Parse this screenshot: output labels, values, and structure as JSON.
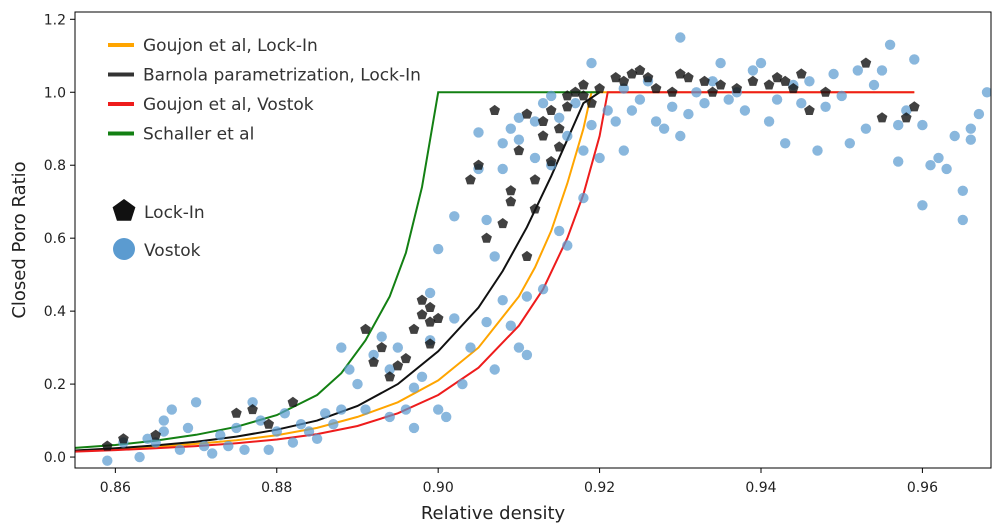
{
  "chart_data": {
    "type": "scatter",
    "title": "",
    "xlabel": "Relative density",
    "ylabel": "Closed Poro Ratio",
    "xlim": [
      0.855,
      0.9685
    ],
    "ylim": [
      -0.03,
      1.22
    ],
    "x_ticks": [
      {
        "value": 0.86,
        "label": "0.86"
      },
      {
        "value": 0.88,
        "label": "0.88"
      },
      {
        "value": 0.9,
        "label": "0.90"
      },
      {
        "value": 0.92,
        "label": "0.92"
      },
      {
        "value": 0.94,
        "label": "0.94"
      },
      {
        "value": 0.96,
        "label": "0.96"
      }
    ],
    "y_ticks": [
      {
        "value": 0.0,
        "label": "0.0"
      },
      {
        "value": 0.2,
        "label": "0.2"
      },
      {
        "value": 0.4,
        "label": "0.4"
      },
      {
        "value": 0.6,
        "label": "0.6"
      },
      {
        "value": 0.8,
        "label": "0.8"
      },
      {
        "value": 1.0,
        "label": "1.0"
      },
      {
        "value": 1.2,
        "label": "1.2"
      }
    ],
    "grid": false,
    "legend": {
      "position": "top-left",
      "lines": [
        {
          "label": "Goujon et al, Lock-In",
          "color": "#ffa500"
        },
        {
          "label": "Barnola parametrization, Lock-In",
          "color": "#333333"
        },
        {
          "label": "Goujon et al, Vostok",
          "color": "#ee1c1c"
        },
        {
          "label": "Schaller et al",
          "color": "#138013"
        }
      ],
      "markers": [
        {
          "label": "Lock-In",
          "shape": "pentagon",
          "color": "#111111"
        },
        {
          "label": "Vostok",
          "shape": "circle",
          "color": "#5b9bd0"
        }
      ]
    },
    "lines": [
      {
        "name": "Goujon et al, Lock-In",
        "color": "#ffa500",
        "x": [
          0.855,
          0.86,
          0.865,
          0.87,
          0.875,
          0.88,
          0.885,
          0.89,
          0.895,
          0.9,
          0.905,
          0.91,
          0.912,
          0.914,
          0.916,
          0.918,
          0.919,
          0.959
        ],
        "y": [
          0.017,
          0.022,
          0.028,
          0.036,
          0.046,
          0.06,
          0.08,
          0.11,
          0.15,
          0.21,
          0.3,
          0.44,
          0.52,
          0.62,
          0.75,
          0.9,
          1.0,
          1.0
        ]
      },
      {
        "name": "Barnola parametrization, Lock-In",
        "color": "#111111",
        "x": [
          0.855,
          0.86,
          0.865,
          0.87,
          0.875,
          0.88,
          0.885,
          0.89,
          0.895,
          0.9,
          0.905,
          0.908,
          0.911,
          0.914,
          0.916,
          0.918,
          0.92
        ],
        "y": [
          0.018,
          0.024,
          0.032,
          0.042,
          0.056,
          0.075,
          0.1,
          0.14,
          0.2,
          0.29,
          0.41,
          0.51,
          0.63,
          0.77,
          0.87,
          0.97,
          1.0
        ]
      },
      {
        "name": "Goujon et al, Vostok",
        "color": "#ee1c1c",
        "x": [
          0.855,
          0.86,
          0.865,
          0.87,
          0.875,
          0.88,
          0.885,
          0.89,
          0.895,
          0.9,
          0.905,
          0.91,
          0.913,
          0.916,
          0.918,
          0.92,
          0.921,
          0.959
        ],
        "y": [
          0.015,
          0.019,
          0.024,
          0.03,
          0.038,
          0.048,
          0.063,
          0.085,
          0.12,
          0.17,
          0.245,
          0.36,
          0.46,
          0.6,
          0.72,
          0.88,
          1.0,
          1.0
        ]
      },
      {
        "name": "Schaller et al",
        "color": "#138013",
        "x": [
          0.855,
          0.86,
          0.865,
          0.87,
          0.875,
          0.88,
          0.885,
          0.888,
          0.891,
          0.894,
          0.896,
          0.898,
          0.9,
          0.92
        ],
        "y": [
          0.025,
          0.033,
          0.045,
          0.061,
          0.083,
          0.115,
          0.17,
          0.23,
          0.32,
          0.44,
          0.56,
          0.74,
          1.0,
          1.0
        ]
      }
    ],
    "scatter": [
      {
        "name": "Lock-In",
        "marker": "pentagon",
        "color": "#111111",
        "points": [
          [
            0.859,
            0.03
          ],
          [
            0.861,
            0.05
          ],
          [
            0.865,
            0.06
          ],
          [
            0.875,
            0.12
          ],
          [
            0.877,
            0.13
          ],
          [
            0.879,
            0.09
          ],
          [
            0.882,
            0.15
          ],
          [
            0.891,
            0.35
          ],
          [
            0.892,
            0.26
          ],
          [
            0.893,
            0.3
          ],
          [
            0.894,
            0.22
          ],
          [
            0.895,
            0.25
          ],
          [
            0.896,
            0.27
          ],
          [
            0.897,
            0.35
          ],
          [
            0.898,
            0.43
          ],
          [
            0.899,
            0.41
          ],
          [
            0.898,
            0.39
          ],
          [
            0.899,
            0.37
          ],
          [
            0.9,
            0.38
          ],
          [
            0.899,
            0.31
          ],
          [
            0.904,
            0.76
          ],
          [
            0.905,
            0.8
          ],
          [
            0.906,
            0.6
          ],
          [
            0.907,
            0.95
          ],
          [
            0.908,
            0.64
          ],
          [
            0.909,
            0.73
          ],
          [
            0.909,
            0.7
          ],
          [
            0.91,
            0.84
          ],
          [
            0.911,
            0.55
          ],
          [
            0.911,
            0.94
          ],
          [
            0.912,
            0.68
          ],
          [
            0.912,
            0.76
          ],
          [
            0.913,
            0.88
          ],
          [
            0.913,
            0.92
          ],
          [
            0.914,
            0.81
          ],
          [
            0.914,
            0.95
          ],
          [
            0.915,
            0.9
          ],
          [
            0.915,
            0.85
          ],
          [
            0.916,
            0.96
          ],
          [
            0.916,
            0.99
          ],
          [
            0.917,
            1.0
          ],
          [
            0.918,
            0.99
          ],
          [
            0.918,
            1.02
          ],
          [
            0.919,
            0.97
          ],
          [
            0.92,
            1.01
          ],
          [
            0.922,
            1.04
          ],
          [
            0.923,
            1.03
          ],
          [
            0.924,
            1.05
          ],
          [
            0.925,
            1.06
          ],
          [
            0.926,
            1.04
          ],
          [
            0.927,
            1.01
          ],
          [
            0.929,
            1.0
          ],
          [
            0.93,
            1.05
          ],
          [
            0.931,
            1.04
          ],
          [
            0.933,
            1.03
          ],
          [
            0.934,
            1.0
          ],
          [
            0.935,
            1.02
          ],
          [
            0.937,
            1.01
          ],
          [
            0.939,
            1.03
          ],
          [
            0.941,
            1.02
          ],
          [
            0.942,
            1.04
          ],
          [
            0.943,
            1.03
          ],
          [
            0.944,
            1.01
          ],
          [
            0.945,
            1.05
          ],
          [
            0.946,
            0.95
          ],
          [
            0.948,
            1.0
          ],
          [
            0.953,
            1.08
          ],
          [
            0.955,
            0.93
          ],
          [
            0.958,
            0.93
          ],
          [
            0.959,
            0.96
          ]
        ]
      },
      {
        "name": "Vostok",
        "marker": "circle",
        "color": "#5b9bd0",
        "points": [
          [
            0.859,
            -0.01
          ],
          [
            0.861,
            0.04
          ],
          [
            0.863,
            0.0
          ],
          [
            0.864,
            0.05
          ],
          [
            0.865,
            0.04
          ],
          [
            0.866,
            0.07
          ],
          [
            0.866,
            0.1
          ],
          [
            0.867,
            0.13
          ],
          [
            0.868,
            0.02
          ],
          [
            0.869,
            0.08
          ],
          [
            0.87,
            0.15
          ],
          [
            0.871,
            0.03
          ],
          [
            0.872,
            0.01
          ],
          [
            0.873,
            0.06
          ],
          [
            0.874,
            0.03
          ],
          [
            0.875,
            0.08
          ],
          [
            0.876,
            0.02
          ],
          [
            0.877,
            0.15
          ],
          [
            0.878,
            0.1
          ],
          [
            0.879,
            0.02
          ],
          [
            0.88,
            0.07
          ],
          [
            0.881,
            0.12
          ],
          [
            0.882,
            0.04
          ],
          [
            0.883,
            0.09
          ],
          [
            0.884,
            0.07
          ],
          [
            0.885,
            0.05
          ],
          [
            0.886,
            0.12
          ],
          [
            0.887,
            0.09
          ],
          [
            0.888,
            0.13
          ],
          [
            0.888,
            0.3
          ],
          [
            0.889,
            0.24
          ],
          [
            0.89,
            0.2
          ],
          [
            0.891,
            0.13
          ],
          [
            0.892,
            0.28
          ],
          [
            0.893,
            0.33
          ],
          [
            0.894,
            0.24
          ],
          [
            0.894,
            0.11
          ],
          [
            0.895,
            0.3
          ],
          [
            0.896,
            0.13
          ],
          [
            0.897,
            0.08
          ],
          [
            0.897,
            0.19
          ],
          [
            0.898,
            0.22
          ],
          [
            0.899,
            0.32
          ],
          [
            0.899,
            0.45
          ],
          [
            0.9,
            0.13
          ],
          [
            0.9,
            0.57
          ],
          [
            0.901,
            0.11
          ],
          [
            0.902,
            0.66
          ],
          [
            0.902,
            0.38
          ],
          [
            0.903,
            0.2
          ],
          [
            0.904,
            0.3
          ],
          [
            0.905,
            0.89
          ],
          [
            0.905,
            0.79
          ],
          [
            0.906,
            0.65
          ],
          [
            0.906,
            0.37
          ],
          [
            0.907,
            0.55
          ],
          [
            0.907,
            0.24
          ],
          [
            0.908,
            0.79
          ],
          [
            0.908,
            0.43
          ],
          [
            0.908,
            0.86
          ],
          [
            0.909,
            0.9
          ],
          [
            0.909,
            0.36
          ],
          [
            0.91,
            0.87
          ],
          [
            0.91,
            0.93
          ],
          [
            0.91,
            0.3
          ],
          [
            0.911,
            0.44
          ],
          [
            0.911,
            0.28
          ],
          [
            0.912,
            0.82
          ],
          [
            0.912,
            0.92
          ],
          [
            0.913,
            0.97
          ],
          [
            0.913,
            0.46
          ],
          [
            0.914,
            0.99
          ],
          [
            0.914,
            0.8
          ],
          [
            0.915,
            0.62
          ],
          [
            0.915,
            0.93
          ],
          [
            0.916,
            0.88
          ],
          [
            0.916,
            0.58
          ],
          [
            0.917,
            0.97
          ],
          [
            0.918,
            0.71
          ],
          [
            0.918,
            0.84
          ],
          [
            0.919,
            0.91
          ],
          [
            0.919,
            1.08
          ],
          [
            0.92,
            0.82
          ],
          [
            0.921,
            0.95
          ],
          [
            0.922,
            0.92
          ],
          [
            0.923,
            0.84
          ],
          [
            0.923,
            1.01
          ],
          [
            0.924,
            0.95
          ],
          [
            0.925,
            0.98
          ],
          [
            0.926,
            1.03
          ],
          [
            0.927,
            0.92
          ],
          [
            0.928,
            0.9
          ],
          [
            0.929,
            0.96
          ],
          [
            0.93,
            1.15
          ],
          [
            0.93,
            0.88
          ],
          [
            0.931,
            0.94
          ],
          [
            0.932,
            1.0
          ],
          [
            0.933,
            0.97
          ],
          [
            0.934,
            1.03
          ],
          [
            0.935,
            1.08
          ],
          [
            0.936,
            0.98
          ],
          [
            0.937,
            1.0
          ],
          [
            0.938,
            0.95
          ],
          [
            0.939,
            1.06
          ],
          [
            0.94,
            1.08
          ],
          [
            0.941,
            0.92
          ],
          [
            0.942,
            0.98
          ],
          [
            0.943,
            0.86
          ],
          [
            0.944,
            1.02
          ],
          [
            0.945,
            0.97
          ],
          [
            0.946,
            1.03
          ],
          [
            0.947,
            0.84
          ],
          [
            0.948,
            0.96
          ],
          [
            0.949,
            1.05
          ],
          [
            0.95,
            0.99
          ],
          [
            0.951,
            0.86
          ],
          [
            0.952,
            1.06
          ],
          [
            0.953,
            0.9
          ],
          [
            0.954,
            1.02
          ],
          [
            0.955,
            1.06
          ],
          [
            0.956,
            1.13
          ],
          [
            0.957,
            0.91
          ],
          [
            0.957,
            0.81
          ],
          [
            0.958,
            0.95
          ],
          [
            0.959,
            1.09
          ],
          [
            0.96,
            0.91
          ],
          [
            0.96,
            0.69
          ],
          [
            0.961,
            0.8
          ],
          [
            0.962,
            0.82
          ],
          [
            0.963,
            0.79
          ],
          [
            0.964,
            0.88
          ],
          [
            0.965,
            0.73
          ],
          [
            0.965,
            0.65
          ],
          [
            0.966,
            0.9
          ],
          [
            0.967,
            0.94
          ],
          [
            0.968,
            1.0
          ],
          [
            0.966,
            0.87
          ]
        ]
      }
    ]
  }
}
